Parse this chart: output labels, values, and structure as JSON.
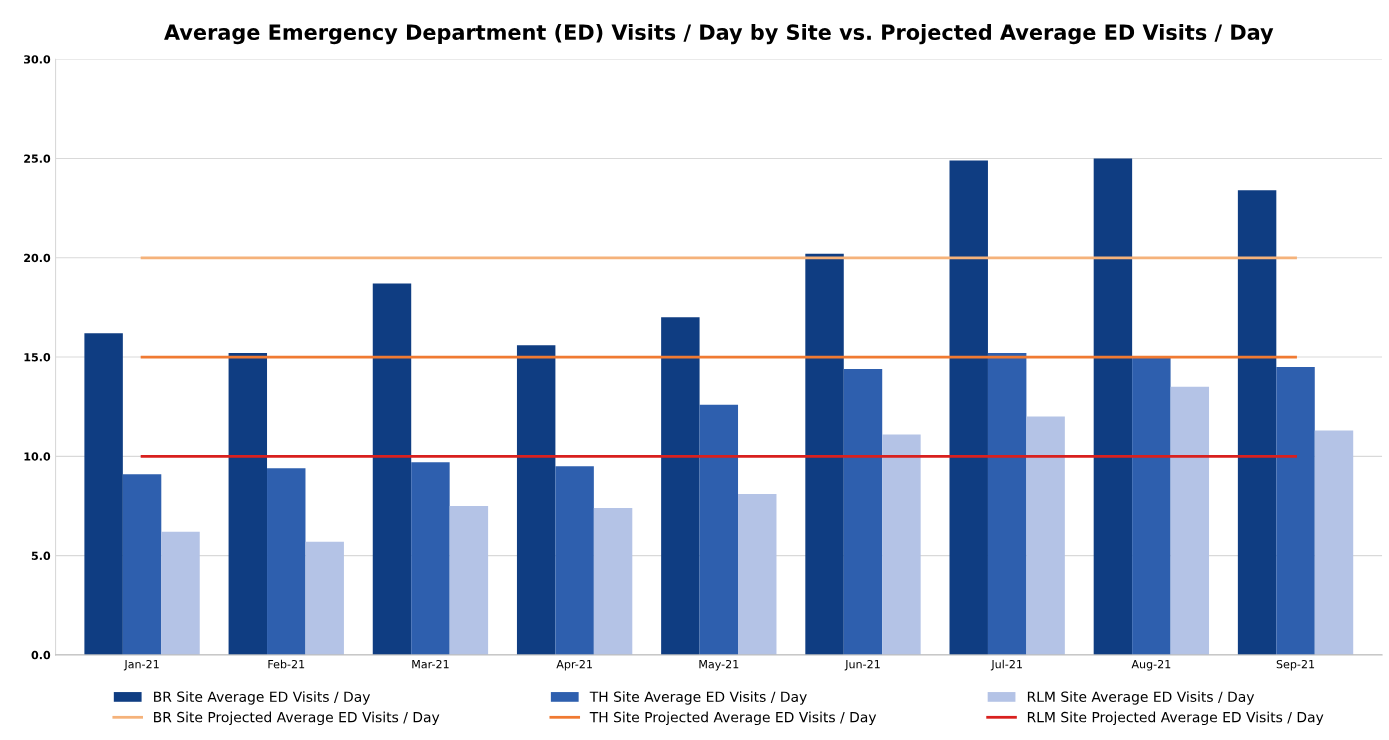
{
  "chart_data": {
    "type": "bar",
    "title": "Average Emergency Department (ED) Visits / Day by Site vs. Projected Average ED Visits / Day",
    "categories": [
      "Jan-21",
      "Feb-21",
      "Mar-21",
      "Apr-21",
      "May-21",
      "Jun-21",
      "Jul-21",
      "Aug-21",
      "Sep-21"
    ],
    "series": [
      {
        "name": "BR Site Average ED Visits / Day",
        "color": "#0f3d82",
        "values": [
          16.2,
          15.2,
          18.7,
          15.6,
          17.0,
          20.2,
          24.9,
          25.0,
          23.4
        ]
      },
      {
        "name": "TH Site Average ED Visits / Day",
        "color": "#2e5fae",
        "values": [
          9.1,
          9.4,
          9.7,
          9.5,
          12.6,
          14.4,
          15.2,
          15.0,
          14.5
        ]
      },
      {
        "name": "RLM Site Average ED Visits / Day",
        "color": "#b4c3e6",
        "values": [
          6.2,
          5.7,
          7.5,
          7.4,
          8.1,
          11.1,
          12.0,
          13.5,
          11.3
        ]
      },
      {
        "name": "BR Site Projected Average ED Visits / Day",
        "type": "line",
        "color": "#f5b27a",
        "values": [
          20,
          20,
          20,
          20,
          20,
          20,
          20,
          20,
          20
        ]
      },
      {
        "name": "TH Site Projected Average ED Visits / Day",
        "type": "line",
        "color": "#f07a32",
        "values": [
          15,
          15,
          15,
          15,
          15,
          15,
          15,
          15,
          15
        ]
      },
      {
        "name": "RLM Site Projected Average ED Visits / Day",
        "type": "line",
        "color": "#d9201e",
        "values": [
          10,
          10,
          10,
          10,
          10,
          10,
          10,
          10,
          10
        ]
      }
    ],
    "ylim": [
      0,
      30
    ],
    "yticks": [
      {
        "value": 0,
        "label": "0.0"
      },
      {
        "value": 5,
        "label": "5.0"
      },
      {
        "value": 10,
        "label": "10.0"
      },
      {
        "value": 15,
        "label": "15.0"
      },
      {
        "value": 20,
        "label": "20.0"
      },
      {
        "value": 25,
        "label": "25.0"
      },
      {
        "value": 30,
        "label": "30.0"
      }
    ],
    "grid": "y",
    "legend": "bottom",
    "marker": "none",
    "line_style": "solid"
  }
}
